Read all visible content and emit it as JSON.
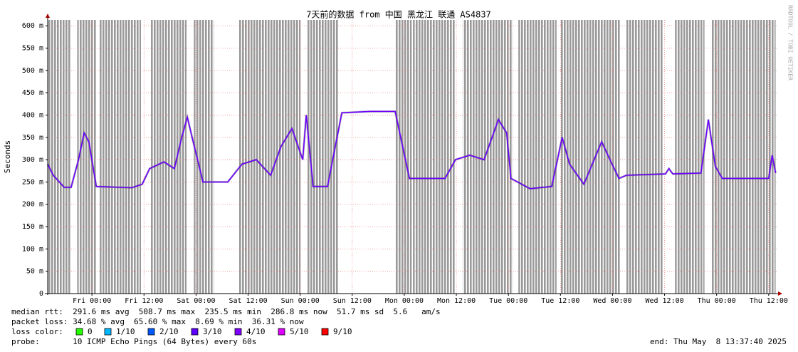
{
  "chart_data": {
    "type": "line",
    "title": "7天前的数据 from 中国 黑龙江 联通 AS4837",
    "y_label": "Seconds",
    "watermark": "RRDTOOL / TOBI OETIKER",
    "x": [
      -10.2,
      -8.9,
      -6.4,
      -4.8,
      -3.1,
      -1.8,
      -0.7,
      1.0,
      9.2,
      11.6,
      13.3,
      16.6,
      19.0,
      20.7,
      22.0,
      23.1,
      25.6,
      31.3,
      34.6,
      37.9,
      41.2,
      43.6,
      46.1,
      48.6,
      49.4,
      51.0,
      54.3,
      57.6,
      64.1,
      69.9,
      73.2,
      81.4,
      83.8,
      87.1,
      90.4,
      93.7,
      95.6,
      96.6,
      101.0,
      106.0,
      108.4,
      110.1,
      113.4,
      117.5,
      119.9,
      121.5,
      123.2,
      132.2,
      133.0,
      133.9,
      140.4,
      142.1,
      143.7,
      145.3,
      156.0,
      156.8,
      157.6
    ],
    "values": [
      290,
      265,
      238,
      238,
      300,
      360,
      340,
      240,
      237,
      245,
      280,
      295,
      280,
      350,
      395,
      350,
      250,
      250,
      290,
      300,
      265,
      330,
      370,
      300,
      400,
      240,
      240,
      405,
      408,
      408,
      258,
      258,
      300,
      310,
      300,
      390,
      360,
      258,
      235,
      240,
      350,
      290,
      245,
      340,
      290,
      258,
      265,
      268,
      280,
      268,
      270,
      390,
      285,
      258,
      258,
      310,
      270
    ],
    "color": "#6a00ff",
    "loss_bands": [
      [
        -10.2,
        -4.8
      ],
      [
        -3.4,
        1.0
      ],
      [
        1.8,
        11.3
      ],
      [
        13.6,
        21.8
      ],
      [
        23.5,
        28.1
      ],
      [
        33.8,
        48.1
      ],
      [
        49.7,
        56.8
      ],
      [
        70.0,
        73.7
      ],
      [
        74.0,
        83.8
      ],
      [
        85.5,
        97.0
      ],
      [
        98.3,
        107.1
      ],
      [
        108.1,
        121.9
      ],
      [
        123.2,
        131.7
      ],
      [
        134.4,
        141.2
      ],
      [
        142.9,
        157.6
      ]
    ],
    "loss_band_color": "#9a9a9a",
    "xlim": [
      -10.2,
      158
    ],
    "xticks": [
      {
        "value": 0,
        "label": "Fri 00:00"
      },
      {
        "value": 12,
        "label": "Fri 12:00"
      },
      {
        "value": 24,
        "label": "Sat 00:00"
      },
      {
        "value": 36,
        "label": "Sat 12:00"
      },
      {
        "value": 48,
        "label": "Sun 00:00"
      },
      {
        "value": 60,
        "label": "Sun 12:00"
      },
      {
        "value": 72,
        "label": "Mon 00:00"
      },
      {
        "value": 84,
        "label": "Mon 12:00"
      },
      {
        "value": 96,
        "label": "Tue 00:00"
      },
      {
        "value": 108,
        "label": "Tue 12:00"
      },
      {
        "value": 120,
        "label": "Wed 00:00"
      },
      {
        "value": 132,
        "label": "Wed 12:00"
      },
      {
        "value": 144,
        "label": "Thu 00:00"
      },
      {
        "value": 156,
        "label": "Thu 12:00"
      }
    ],
    "ylim": [
      0,
      613
    ],
    "yticks": [
      0,
      {
        "value": 50,
        "label": "50 m"
      },
      {
        "value": 100,
        "label": "100 m"
      },
      {
        "value": 150,
        "label": "150 m"
      },
      {
        "value": 200,
        "label": "200 m"
      },
      {
        "value": 250,
        "label": "250 m"
      },
      {
        "value": 300,
        "label": "300 m"
      },
      {
        "value": 350,
        "label": "350 m"
      },
      {
        "value": 400,
        "label": "400 m"
      },
      {
        "value": 450,
        "label": "450 m"
      },
      {
        "value": 500,
        "label": "500 m"
      },
      {
        "value": 550,
        "label": "550 m"
      },
      {
        "value": 600,
        "label": "600 m"
      }
    ],
    "grid": true,
    "stats": [
      "median rtt:  291.6 ms avg  508.7 ms max  235.5 ms min  286.8 ms now  51.7 ms sd  5.6   am/s",
      "packet loss: 34.68 % avg  65.60 % max  8.69 % min  36.31 % now"
    ],
    "loss_legend_title": "loss color:",
    "loss_legend": [
      {
        "label": "0",
        "color": "#26ff00"
      },
      {
        "label": "1/10",
        "color": "#00b8ff"
      },
      {
        "label": "2/10",
        "color": "#0059ff"
      },
      {
        "label": "3/10",
        "color": "#5e00ff"
      },
      {
        "label": "4/10",
        "color": "#7e00ff"
      },
      {
        "label": "5/10",
        "color": "#dd00ff"
      },
      {
        "label": "9/10",
        "color": "#ff0000"
      }
    ],
    "probe": "probe:       10 ICMP Echo Pings (64 Bytes) every 60s",
    "end": "end: Thu May  8 13:37:40 2025"
  }
}
